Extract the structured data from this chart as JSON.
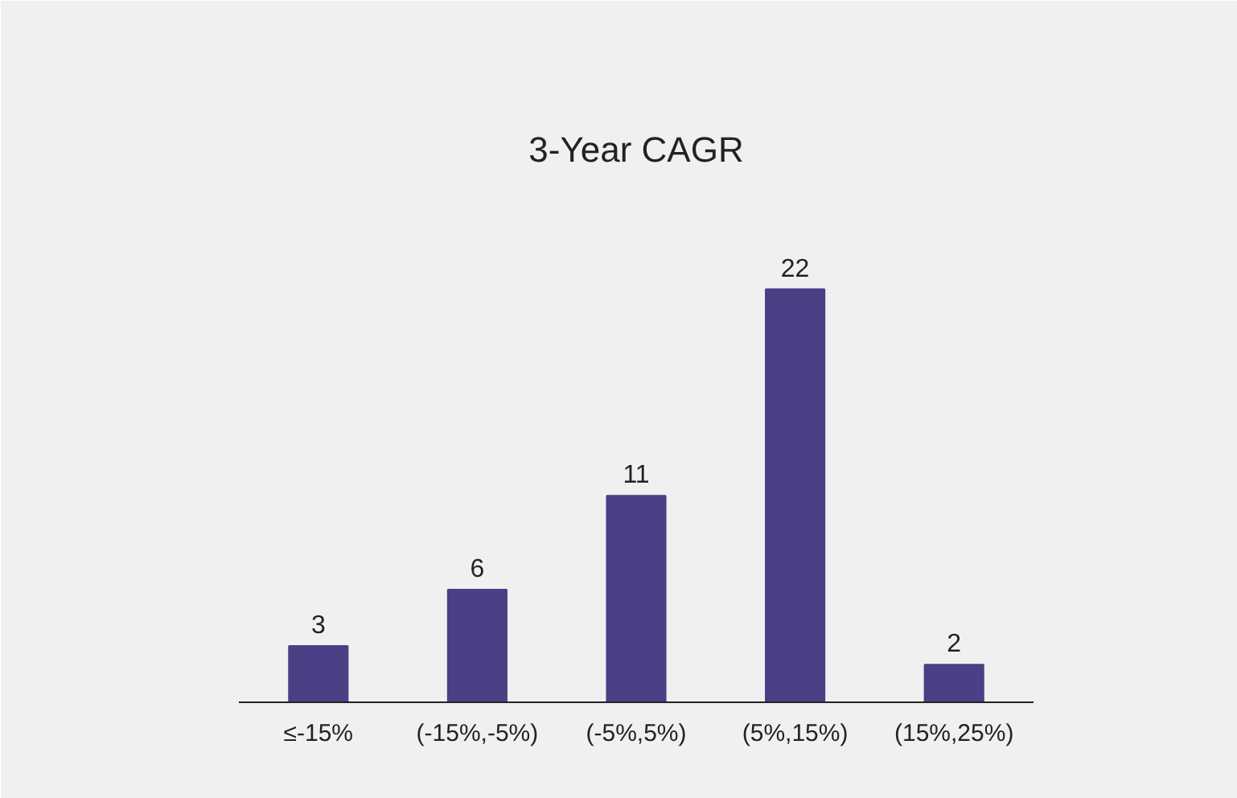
{
  "chart_data": {
    "type": "bar",
    "title": "3-Year CAGR",
    "categories": [
      "≤-15%",
      "(-15%,-5%)",
      "(-5%,5%)",
      "(5%,15%)",
      "(15%,25%)"
    ],
    "values": [
      3,
      6,
      11,
      22,
      2
    ],
    "color": "#4b3f86",
    "data_labels": true
  }
}
